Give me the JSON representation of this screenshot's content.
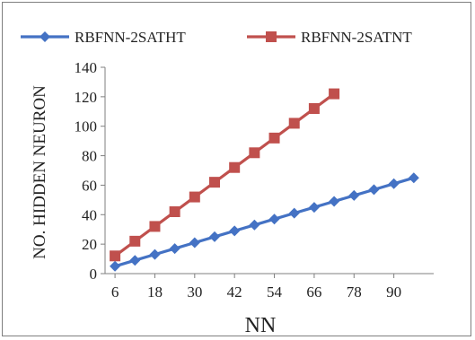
{
  "chart_data": {
    "type": "line",
    "title": "",
    "xlabel": "NN",
    "ylabel": "NO. HIDDEN NEURON",
    "ylim": [
      0,
      140
    ],
    "xlim": [
      3,
      102
    ],
    "yticks": [
      0,
      20,
      40,
      60,
      80,
      100,
      120,
      140
    ],
    "xticks": [
      6,
      18,
      30,
      42,
      54,
      66,
      78,
      90
    ],
    "grid": false,
    "legend_position": "top",
    "series": [
      {
        "name": "RBFNN-2SATHT",
        "color": "#4472C4",
        "marker": "diamond",
        "x": [
          6,
          12,
          18,
          24,
          30,
          36,
          42,
          48,
          54,
          60,
          66,
          72,
          78,
          84,
          90,
          96
        ],
        "values": [
          5,
          9,
          13,
          17,
          21,
          25,
          29,
          33,
          37,
          41,
          45,
          49,
          53,
          57,
          61,
          65
        ]
      },
      {
        "name": "RBFNN-2SATNT",
        "color": "#C0504D",
        "marker": "square",
        "x": [
          6,
          12,
          18,
          24,
          30,
          36,
          42,
          48,
          54,
          60,
          66,
          72
        ],
        "values": [
          12,
          22,
          32,
          42,
          52,
          62,
          72,
          82,
          92,
          102,
          112,
          122
        ]
      }
    ]
  }
}
